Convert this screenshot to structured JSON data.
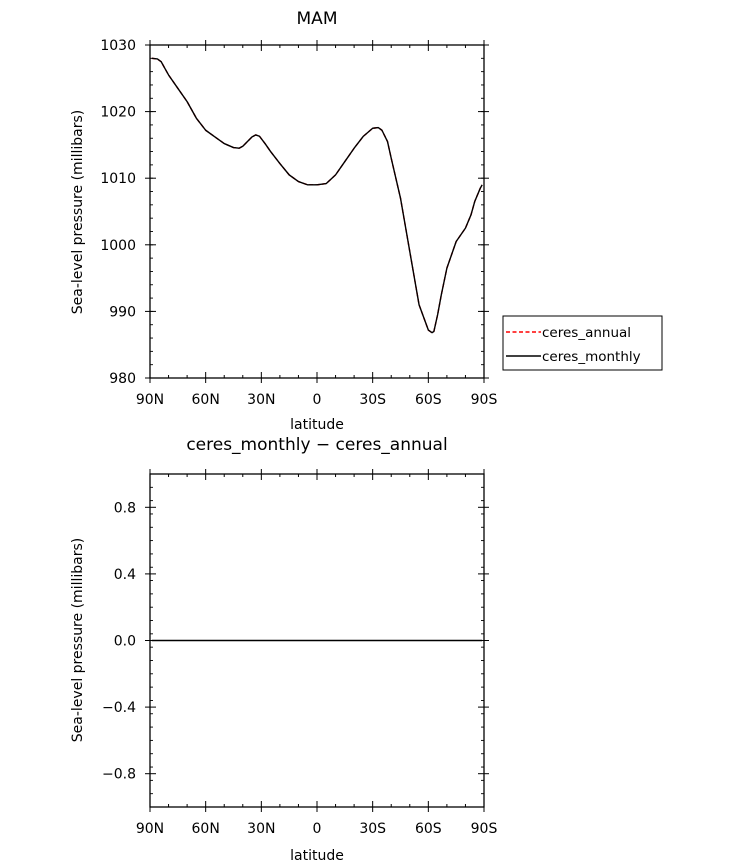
{
  "chart_data": [
    {
      "type": "line",
      "title": "MAM",
      "xlabel": "latitude",
      "ylabel": "Sea-level pressure (millibars)",
      "xlim": [
        90,
        -90
      ],
      "ylim": [
        980,
        1030
      ],
      "x_ticks": [
        90,
        60,
        30,
        0,
        -30,
        -60,
        -90
      ],
      "x_tick_labels": [
        "90N",
        "60N",
        "30N",
        "0",
        "30S",
        "60S",
        "90S"
      ],
      "y_ticks": [
        980,
        990,
        1000,
        1010,
        1020,
        1030
      ],
      "y_tick_labels": [
        "980",
        "990",
        "1000",
        "1010",
        "1020",
        "1030"
      ],
      "grid": false,
      "legend": {
        "placement": "right",
        "entries": [
          "ceres_annual",
          "ceres_monthly"
        ]
      },
      "series": [
        {
          "name": "ceres_annual",
          "color": "#ff0000",
          "style": "dashed",
          "x": [
            89,
            86,
            84,
            82,
            80,
            75,
            70,
            65,
            60,
            55,
            50,
            45,
            42,
            40,
            35,
            33,
            31,
            28,
            25,
            20,
            15,
            10,
            5,
            0,
            -5,
            -10,
            -15,
            -20,
            -25,
            -30,
            -33,
            -35,
            -38,
            -40,
            -45,
            -50,
            -55,
            -60,
            -62,
            -63,
            -65,
            -67,
            -70,
            -75,
            -80,
            -83,
            -85,
            -88,
            -89
          ],
          "y": [
            1028,
            1027.9,
            1027.5,
            1026.5,
            1025.5,
            1023.5,
            1021.5,
            1019,
            1017.2,
            1016.2,
            1015.2,
            1014.6,
            1014.5,
            1014.8,
            1016.2,
            1016.5,
            1016.3,
            1015.2,
            1014,
            1012.2,
            1010.5,
            1009.5,
            1009,
            1009,
            1009.2,
            1010.5,
            1012.5,
            1014.5,
            1016.3,
            1017.5,
            1017.6,
            1017.2,
            1015.5,
            1013,
            1007,
            999,
            991,
            987.2,
            986.8,
            987,
            989.5,
            992.5,
            996.5,
            1000.5,
            1002.5,
            1004.5,
            1006.5,
            1008.5,
            1009
          ]
        },
        {
          "name": "ceres_monthly",
          "color": "#000000",
          "style": "solid",
          "x": [
            89,
            86,
            84,
            82,
            80,
            75,
            70,
            65,
            60,
            55,
            50,
            45,
            42,
            40,
            35,
            33,
            31,
            28,
            25,
            20,
            15,
            10,
            5,
            0,
            -5,
            -10,
            -15,
            -20,
            -25,
            -30,
            -33,
            -35,
            -38,
            -40,
            -45,
            -50,
            -55,
            -60,
            -62,
            -63,
            -65,
            -67,
            -70,
            -75,
            -80,
            -83,
            -85,
            -88,
            -89
          ],
          "y": [
            1028,
            1027.9,
            1027.5,
            1026.5,
            1025.5,
            1023.5,
            1021.5,
            1019,
            1017.2,
            1016.2,
            1015.2,
            1014.6,
            1014.5,
            1014.8,
            1016.2,
            1016.5,
            1016.3,
            1015.2,
            1014,
            1012.2,
            1010.5,
            1009.5,
            1009,
            1009,
            1009.2,
            1010.5,
            1012.5,
            1014.5,
            1016.3,
            1017.5,
            1017.6,
            1017.2,
            1015.5,
            1013,
            1007,
            999,
            991,
            987.2,
            986.8,
            987,
            989.5,
            992.5,
            996.5,
            1000.5,
            1002.5,
            1004.5,
            1006.5,
            1008.5,
            1009
          ]
        }
      ]
    },
    {
      "type": "line",
      "title": "ceres_monthly − ceres_annual",
      "xlabel": "latitude",
      "ylabel": "Sea-level pressure (millibars)",
      "xlim": [
        90,
        -90
      ],
      "ylim": [
        -1,
        1
      ],
      "x_ticks": [
        90,
        60,
        30,
        0,
        -30,
        -60,
        -90
      ],
      "x_tick_labels": [
        "90N",
        "60N",
        "30N",
        "0",
        "30S",
        "60S",
        "90S"
      ],
      "y_ticks": [
        -0.8,
        -0.4,
        0.0,
        0.4,
        0.8
      ],
      "y_tick_labels": [
        "−0.8",
        "−0.4",
        "0.0",
        "0.4",
        "0.8"
      ],
      "grid": false,
      "series": [
        {
          "color": "#000000",
          "style": "solid",
          "x": [
            89,
            60,
            30,
            0,
            -30,
            -60,
            -89
          ],
          "y": [
            0,
            0,
            0,
            0,
            0,
            0,
            0
          ]
        }
      ]
    }
  ]
}
